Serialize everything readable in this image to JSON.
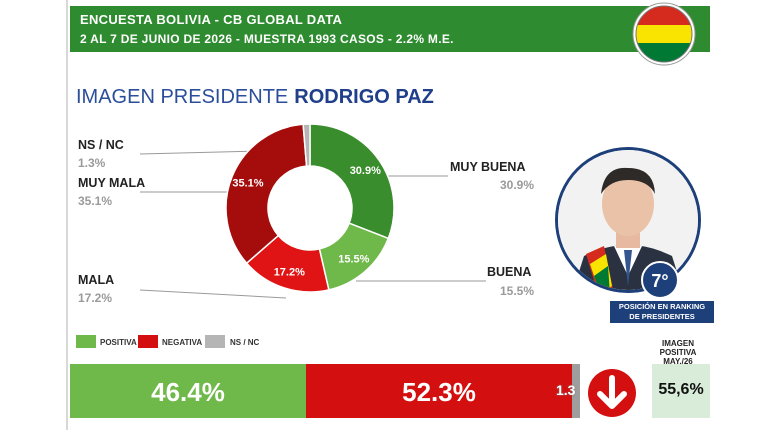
{
  "header": {
    "line1": "ENCUESTA BOLIVIA - CB GLOBAL DATA",
    "line2": "2 AL 7 DE JUNIO DE 2026 - MUESTRA 1993 CASOS - 2.2% M.E."
  },
  "title": {
    "prefix": "IMAGEN PRESIDENTE",
    "name": "RODRIGO PAZ"
  },
  "colors": {
    "header_green": "#2e8b2f",
    "muy_buena": "#3a8d2c",
    "buena": "#6fb84a",
    "mala": "#e01414",
    "muy_mala": "#a50d0d",
    "ns_nc": "#b5b5b5",
    "flag_red": "#d52b1e",
    "flag_yellow": "#f9e300",
    "flag_green": "#007934"
  },
  "chart_data": {
    "type": "pie",
    "variant": "donut",
    "slices": [
      {
        "label": "MUY BUENA",
        "value": 30.9,
        "value_label": "30.9%",
        "color": "#3a8d2c"
      },
      {
        "label": "BUENA",
        "value": 15.5,
        "value_label": "15.5%",
        "color": "#6fb84a"
      },
      {
        "label": "MALA",
        "value": 17.2,
        "value_label": "17.2%",
        "color": "#e01414"
      },
      {
        "label": "MUY MALA",
        "value": 35.1,
        "value_label": "35.1%",
        "color": "#a50d0d"
      },
      {
        "label": "NS / NC",
        "value": 1.3,
        "value_label": "1.3%",
        "color": "#b5b5b5"
      }
    ],
    "legend": [
      {
        "label": "POSITIVA",
        "color": "#6fb84a"
      },
      {
        "label": "NEGATIVA",
        "color": "#d40f0f"
      },
      {
        "label": "NS / NC",
        "color": "#b5b5b5"
      }
    ],
    "legend_position": "bottom-left",
    "summary_bar": [
      {
        "name": "POSITIVA",
        "value": 46.4,
        "value_label": "46.4%"
      },
      {
        "name": "NEGATIVA",
        "value": 52.3,
        "value_label": "52.3%"
      },
      {
        "name": "NS / NC",
        "value": 1.3,
        "value_label": "1.3"
      }
    ]
  },
  "side_labels": {
    "ns_nc": {
      "label": "NS / NC",
      "value": "1.3%"
    },
    "muy_mala": {
      "label": "MUY MALA",
      "value": "35.1%"
    },
    "mala": {
      "label": "MALA",
      "value": "17.2%"
    },
    "muy_buena": {
      "label": "MUY BUENA",
      "value": "30.9%"
    },
    "buena": {
      "label": "BUENA",
      "value": "15.5%"
    }
  },
  "ranking": {
    "position": "7°",
    "caption_line1": "POSICIÓN EN RANKING",
    "caption_line2": "DE PRESIDENTES"
  },
  "image_positive": {
    "label_line1": "IMAGEN",
    "label_line2": "POSITIVA",
    "label_line3": "MAY./26",
    "value": "55,6%",
    "trend_icon": "arrow-down-icon"
  }
}
